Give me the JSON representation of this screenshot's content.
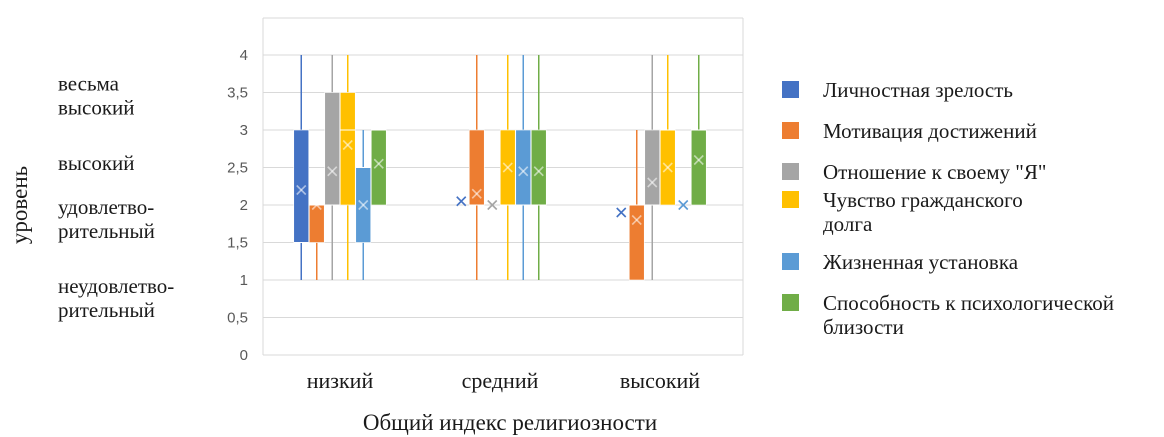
{
  "chart_data": {
    "type": "box",
    "title": "",
    "xlabel": "Общий индекс религиозности",
    "ylabel": "уровень",
    "ylim": [
      0,
      4.3
    ],
    "yticks": [
      0,
      0.5,
      1,
      1.5,
      2,
      2.5,
      3,
      3.5,
      4
    ],
    "ytick_labels": [
      "0",
      "0,5",
      "1",
      "1,5",
      "2",
      "2,5",
      "3",
      "3,5",
      "4"
    ],
    "level_labels": [
      {
        "lines": [
          "весьма",
          "высокий"
        ],
        "value": 3.45
      },
      {
        "lines": [
          "высокий"
        ],
        "value": 2.55
      },
      {
        "lines": [
          "удовлетво-",
          "рительный"
        ],
        "value": 1.8
      },
      {
        "lines": [
          "неудовлетво-",
          "рительный"
        ],
        "value": 0.75
      }
    ],
    "categories": [
      "низкий",
      "средний",
      "высокий"
    ],
    "grid": true,
    "legend_position": "right",
    "series": [
      {
        "name": "Личностная зрелость",
        "color": "#4472C4",
        "boxes": [
          {
            "min": 1,
            "q1": 1.5,
            "median": 1.5,
            "q3": 3,
            "max": 4,
            "mean": 2.2
          },
          {
            "min": 2.05,
            "q1": 2.05,
            "median": 2.05,
            "q3": 2.05,
            "max": 2.05,
            "mean": 2.05
          },
          {
            "min": 1.9,
            "q1": 1.9,
            "median": 1.9,
            "q3": 1.9,
            "max": 1.9,
            "mean": 1.9
          }
        ]
      },
      {
        "name": "Мотивация достижений",
        "color": "#ED7D31",
        "boxes": [
          {
            "min": 1,
            "q1": 1.5,
            "median": 2,
            "q3": 2,
            "max": 2,
            "mean": 2
          },
          {
            "min": 1,
            "q1": 2,
            "median": 2,
            "q3": 3,
            "max": 4,
            "mean": 2.15
          },
          {
            "min": 1,
            "q1": 1,
            "median": 2,
            "q3": 2,
            "max": 3,
            "mean": 1.8
          }
        ]
      },
      {
        "name": "Отношение к своему \"Я\"",
        "color": "#A5A5A5",
        "boxes": [
          {
            "min": 1,
            "q1": 2,
            "median": 2,
            "q3": 3.5,
            "max": 4,
            "mean": 2.45
          },
          {
            "min": 2,
            "q1": 2,
            "median": 2,
            "q3": 2,
            "max": 2,
            "mean": 2
          },
          {
            "min": 1,
            "q1": 2,
            "median": 2,
            "q3": 3,
            "max": 4,
            "mean": 2.3
          }
        ]
      },
      {
        "name": "Чувство гражданского долга",
        "color": "#FFC000",
        "boxes": [
          {
            "min": 1,
            "q1": 2,
            "median": 3,
            "q3": 3.5,
            "max": 4,
            "mean": 2.8
          },
          {
            "min": 1,
            "q1": 2,
            "median": 2,
            "q3": 3,
            "max": 4,
            "mean": 2.5
          },
          {
            "min": 2,
            "q1": 2,
            "median": 3,
            "q3": 3,
            "max": 4,
            "mean": 2.5
          }
        ]
      },
      {
        "name": "Жизненная установка",
        "color": "#5B9BD5",
        "boxes": [
          {
            "min": 1,
            "q1": 1.5,
            "median": 2.5,
            "q3": 2.5,
            "max": 3,
            "mean": 2
          },
          {
            "min": 1,
            "q1": 2,
            "median": 2,
            "q3": 3,
            "max": 4,
            "mean": 2.45
          },
          {
            "min": 2,
            "q1": 2,
            "median": 2,
            "q3": 2,
            "max": 2,
            "mean": 2
          }
        ]
      },
      {
        "name": "Способность к психологической близости",
        "color": "#70AD47",
        "boxes": [
          {
            "min": 2,
            "q1": 2,
            "median": 3,
            "q3": 3,
            "max": 3,
            "mean": 2.55
          },
          {
            "min": 1,
            "q1": 2,
            "median": 2,
            "q3": 3,
            "max": 4,
            "mean": 2.45
          },
          {
            "min": 2,
            "q1": 2,
            "median": 3,
            "q3": 3,
            "max": 4,
            "mean": 2.6
          }
        ]
      }
    ]
  }
}
